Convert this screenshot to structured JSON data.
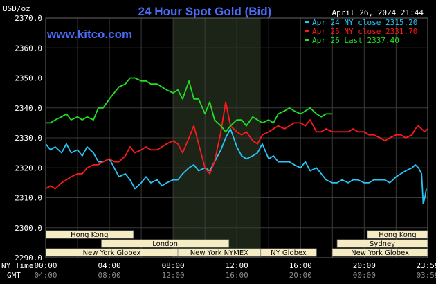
{
  "chart_data": {
    "type": "line",
    "title": "24 Hour Spot Gold (Bid)",
    "brand": "www.kitco.com",
    "date": "April 26, 2024 21:44",
    "y_unit": "USD/oz",
    "ylim": [
      2290,
      2370
    ],
    "y_ticks": [
      "2370.0",
      "2360.0",
      "2350.0",
      "2340.0",
      "2330.0",
      "2320.0",
      "2310.0",
      "2300.0",
      "2290.0"
    ],
    "x_ticks_ny": [
      "00:00",
      "04:00",
      "08:00",
      "12:00",
      "16:00",
      "20:00",
      "23:59"
    ],
    "x_ticks_gmt": [
      "04:00",
      "08:00",
      "12:00",
      "16:00",
      "20:00",
      "00:00",
      "03:59"
    ],
    "x_axis_labels": {
      "ny": "NY Time",
      "gmt": "GMT"
    },
    "grid": true,
    "legend": [
      {
        "label": "Apr 24 NY close 2315.20",
        "color": "#29c5f6"
      },
      {
        "label": "Apr 25 NY close 2331.70",
        "color": "#ff1a1a"
      },
      {
        "label": "Apr 26 Last 2337.40",
        "color": "#22e022"
      }
    ],
    "highlight_hours": [
      8.0,
      13.5
    ],
    "market_bars": [
      {
        "label": "Hong Kong",
        "start": 0.0,
        "end": 5.5,
        "row": 1
      },
      {
        "label": "Hong Kong",
        "start": 20.2,
        "end": 23.98,
        "row": 1
      },
      {
        "label": "London",
        "start": 3.5,
        "end": 11.5,
        "row": 2
      },
      {
        "label": "Sydney",
        "start": 18.3,
        "end": 23.98,
        "row": 2
      },
      {
        "label": "New York Globex",
        "start": 0.0,
        "end": 8.3,
        "row": 3
      },
      {
        "label": "New York NYMEX",
        "start": 8.3,
        "end": 13.5,
        "row": 3
      },
      {
        "label": "NY Globex",
        "start": 13.5,
        "end": 17.0,
        "row": 3
      },
      {
        "label": "New York Globex",
        "start": 18.0,
        "end": 23.98,
        "row": 3
      }
    ],
    "series": [
      {
        "name": "Apr 24",
        "color": "#29c5f6",
        "x": [
          0,
          0.3,
          0.6,
          1.0,
          1.3,
          1.6,
          2.0,
          2.3,
          2.6,
          3.0,
          3.3,
          3.6,
          4.0,
          4.3,
          4.6,
          5.0,
          5.3,
          5.6,
          6.0,
          6.3,
          6.6,
          7.0,
          7.3,
          7.6,
          8.0,
          8.3,
          8.6,
          9.0,
          9.3,
          9.6,
          10.0,
          10.3,
          10.6,
          11.0,
          11.3,
          11.6,
          12.0,
          12.3,
          12.6,
          13.0,
          13.3,
          13.6,
          14.0,
          14.3,
          14.6,
          15.0,
          15.3,
          15.6,
          16.0,
          16.3,
          16.6,
          17.0,
          17.3,
          17.6,
          18.0,
          18.3,
          18.6,
          19.0,
          19.3,
          19.6,
          20.0,
          20.3,
          20.6,
          21.0,
          21.3,
          21.6,
          22.0,
          22.3,
          22.6,
          23.0,
          23.2,
          23.4,
          23.5,
          23.6,
          23.7,
          23.8,
          23.9
        ],
        "y": [
          2328,
          2326,
          2327,
          2325,
          2328,
          2325,
          2326,
          2324,
          2327,
          2325,
          2322,
          2322,
          2323,
          2320,
          2317,
          2318,
          2316,
          2313,
          2315,
          2317,
          2315,
          2316,
          2314,
          2315,
          2316,
          2316,
          2318,
          2320,
          2321,
          2319,
          2320,
          2319,
          2322,
          2326,
          2330,
          2333,
          2327,
          2324,
          2323,
          2324,
          2325,
          2328,
          2323,
          2324,
          2322,
          2322,
          2322,
          2321,
          2320,
          2322,
          2319,
          2320,
          2318,
          2316,
          2315,
          2315,
          2316,
          2315,
          2316,
          2316,
          2315,
          2315,
          2316,
          2316,
          2316,
          2315,
          2317,
          2318,
          2319,
          2320,
          2321,
          2320,
          2319,
          2318,
          2308,
          2310,
          2313
        ]
      },
      {
        "name": "Apr 25",
        "color": "#ff1a1a",
        "x": [
          0,
          0.3,
          0.6,
          1.0,
          1.3,
          1.6,
          2.0,
          2.3,
          2.6,
          3.0,
          3.3,
          3.6,
          4.0,
          4.3,
          4.6,
          5.0,
          5.3,
          5.6,
          6.0,
          6.3,
          6.6,
          7.0,
          7.3,
          7.6,
          8.0,
          8.3,
          8.6,
          9.0,
          9.3,
          9.6,
          10.0,
          10.3,
          10.6,
          11.0,
          11.3,
          11.6,
          12.0,
          12.3,
          12.6,
          13.0,
          13.3,
          13.6,
          14.0,
          14.3,
          14.6,
          15.0,
          15.3,
          15.6,
          16.0,
          16.3,
          16.6,
          17.0,
          17.3,
          17.6,
          18.0,
          18.3,
          18.6,
          19.0,
          19.3,
          19.6,
          20.0,
          20.3,
          20.6,
          21.0,
          21.3,
          21.6,
          22.0,
          22.3,
          22.6,
          23.0,
          23.2,
          23.4,
          23.6,
          23.8,
          23.98
        ],
        "y": [
          2313,
          2314,
          2313,
          2315,
          2316,
          2317,
          2318,
          2318,
          2320,
          2321,
          2321,
          2322,
          2323,
          2322,
          2322,
          2324,
          2327,
          2325,
          2326,
          2327,
          2326,
          2326,
          2327,
          2328,
          2329,
          2328,
          2325,
          2330,
          2334,
          2328,
          2320,
          2318,
          2322,
          2332,
          2342,
          2334,
          2332,
          2331,
          2332,
          2329,
          2328,
          2331,
          2332,
          2333,
          2334,
          2333,
          2334,
          2335,
          2335,
          2334,
          2336,
          2332,
          2332,
          2333,
          2332,
          2332,
          2332,
          2332,
          2333,
          2332,
          2332,
          2331,
          2331,
          2330,
          2329,
          2330,
          2331,
          2331,
          2330,
          2331,
          2333,
          2334,
          2333,
          2332,
          2333
        ]
      },
      {
        "name": "Apr 26",
        "color": "#22e022",
        "x": [
          0,
          0.3,
          0.6,
          1.0,
          1.3,
          1.6,
          2.0,
          2.3,
          2.6,
          3.0,
          3.3,
          3.6,
          4.0,
          4.3,
          4.6,
          5.0,
          5.3,
          5.6,
          6.0,
          6.3,
          6.6,
          7.0,
          7.3,
          7.6,
          8.0,
          8.3,
          8.6,
          9.0,
          9.3,
          9.6,
          10.0,
          10.3,
          10.6,
          11.0,
          11.3,
          11.6,
          12.0,
          12.3,
          12.6,
          13.0,
          13.3,
          13.6,
          14.0,
          14.3,
          14.6,
          15.0,
          15.3,
          15.6,
          16.0,
          16.3,
          16.6,
          17.0,
          17.3,
          17.6,
          18.0
        ],
        "y": [
          2335,
          2335,
          2336,
          2337,
          2338,
          2336,
          2337,
          2336,
          2337,
          2336,
          2340,
          2340,
          2343,
          2345,
          2347,
          2348,
          2350,
          2350,
          2349,
          2349,
          2348,
          2348,
          2347,
          2346,
          2345,
          2346,
          2343,
          2349,
          2343,
          2343,
          2338,
          2342,
          2336,
          2334,
          2332,
          2334,
          2336,
          2336,
          2334,
          2337,
          2336,
          2335,
          2336,
          2335,
          2338,
          2339,
          2340,
          2339,
          2338,
          2339,
          2340,
          2338,
          2337,
          2338,
          2338
        ]
      }
    ]
  }
}
